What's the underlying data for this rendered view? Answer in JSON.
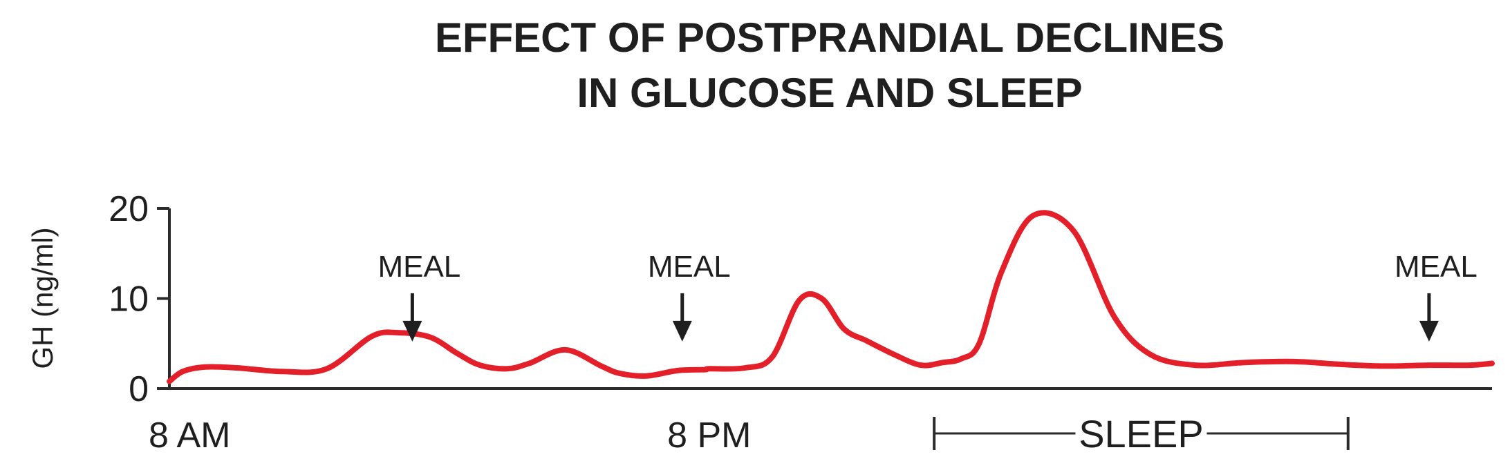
{
  "chart_data": {
    "type": "line",
    "title": [
      "EFFECT OF POSTPRANDIAL DECLINES",
      "IN GLUCOSE AND SLEEP"
    ],
    "ylabel": "GH (ng/ml)",
    "xlabel": "",
    "ylim": [
      0,
      20
    ],
    "yticks": [
      0,
      10,
      20
    ],
    "xlim": [
      0,
      29.4
    ],
    "xticks": [
      {
        "value": 0,
        "label": "8 AM"
      },
      {
        "value": 12,
        "label": "8 PM"
      }
    ],
    "colors": {
      "series": "#e3202a",
      "axis": "#2a2a2a"
    },
    "series": [
      {
        "x": [
          0,
          0.3,
          0.8,
          1.5,
          2.5,
          3.5,
          4.5,
          5.1,
          5.8,
          6.4,
          6.9,
          7.5,
          8.0,
          8.8,
          9.6,
          10.0,
          10.6,
          11.3,
          11.9,
          12.0,
          12.8,
          13.4,
          14.0,
          14.5,
          15.0,
          15.5,
          16.1,
          16.7,
          17.2,
          17.6,
          18.0,
          18.5,
          19.2,
          20.1,
          21.0,
          21.8,
          22.8,
          23.9,
          25.0,
          26.0,
          27.0,
          28.0,
          28.9,
          29.4
        ],
        "y": [
          0.8,
          1.9,
          2.4,
          2.3,
          1.9,
          2.2,
          5.8,
          6.2,
          5.7,
          3.9,
          2.6,
          2.2,
          2.8,
          4.3,
          2.5,
          1.7,
          1.4,
          2.0,
          2.1,
          2.2,
          2.3,
          3.5,
          9.8,
          10.0,
          6.6,
          5.3,
          3.8,
          2.6,
          2.9,
          3.3,
          5.0,
          13.0,
          19.2,
          17.5,
          8.0,
          3.8,
          2.6,
          2.9,
          3.0,
          2.7,
          2.5,
          2.6,
          2.6,
          2.8
        ]
      }
    ],
    "annotations": [
      {
        "label": "MEAL",
        "x": 5.4,
        "y": 11.5
      },
      {
        "label": "MEAL",
        "x": 11.4,
        "y": 11.5
      },
      {
        "label": "MEAL",
        "x": 28.0,
        "y": 11.5
      }
    ],
    "bracket": {
      "label": "SLEEP",
      "x_start": 17.0,
      "x_end": 26.2
    }
  }
}
